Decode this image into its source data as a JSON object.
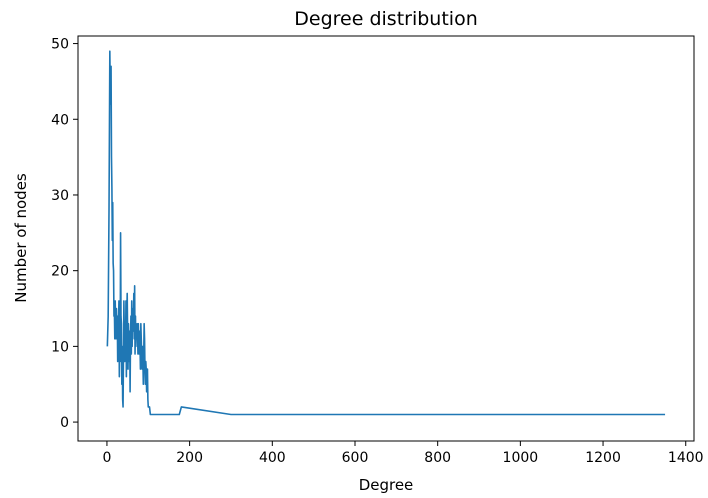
{
  "chart_data": {
    "type": "line",
    "title": "Degree distribution",
    "xlabel": "Degree",
    "ylabel": "Number of nodes",
    "xlim": [
      -70,
      1420
    ],
    "ylim": [
      -2.5,
      51
    ],
    "xticks": [
      0,
      200,
      400,
      600,
      800,
      1000,
      1200,
      1400
    ],
    "yticks": [
      0,
      10,
      20,
      30,
      40,
      50
    ],
    "grid": false,
    "legend": "none",
    "colors": {
      "line": "#1f77b4",
      "axis": "#000000",
      "background": "#ffffff"
    },
    "series": [
      {
        "x": [
          1,
          3,
          5,
          7,
          8,
          9,
          10,
          11,
          12,
          13,
          14,
          15,
          16,
          17,
          18,
          19,
          20,
          21,
          22,
          23,
          24,
          25,
          26,
          27,
          28,
          29,
          30,
          31,
          32,
          33,
          34,
          35,
          36,
          37,
          38,
          39,
          40,
          41,
          42,
          43,
          44,
          45,
          46,
          47,
          48,
          49,
          50,
          51,
          52,
          53,
          54,
          55,
          56,
          57,
          58,
          59,
          60,
          61,
          62,
          63,
          64,
          65,
          66,
          67,
          68,
          69,
          70,
          71,
          72,
          73,
          74,
          75,
          76,
          77,
          78,
          79,
          80,
          81,
          82,
          83,
          84,
          85,
          86,
          87,
          88,
          89,
          90,
          91,
          92,
          93,
          94,
          95,
          96,
          97,
          98,
          99,
          100,
          103,
          105,
          110,
          120,
          140,
          160,
          175,
          180,
          300,
          1350
        ],
        "y": [
          10,
          14,
          28,
          49,
          44,
          42,
          47,
          35,
          31,
          24,
          29,
          21,
          20,
          14,
          15,
          11,
          16,
          13,
          11,
          15,
          12,
          14,
          8,
          12,
          13,
          16,
          6,
          11,
          8,
          25,
          14,
          13,
          5,
          10,
          3,
          2,
          9,
          16,
          12,
          8,
          13,
          10,
          16,
          6,
          14,
          17,
          12,
          7,
          13,
          10,
          8,
          12,
          4,
          11,
          14,
          9,
          16,
          10,
          15,
          12,
          13,
          17,
          11,
          18,
          9,
          14,
          10,
          12,
          11,
          13,
          12,
          9,
          13,
          11,
          9,
          12,
          10,
          7,
          13,
          11,
          9,
          7,
          10,
          8,
          5,
          9,
          13,
          11,
          7,
          5,
          8,
          7,
          4,
          6,
          7,
          3,
          2,
          2,
          1,
          1,
          1,
          1,
          1,
          1,
          2,
          1,
          1
        ]
      }
    ]
  }
}
